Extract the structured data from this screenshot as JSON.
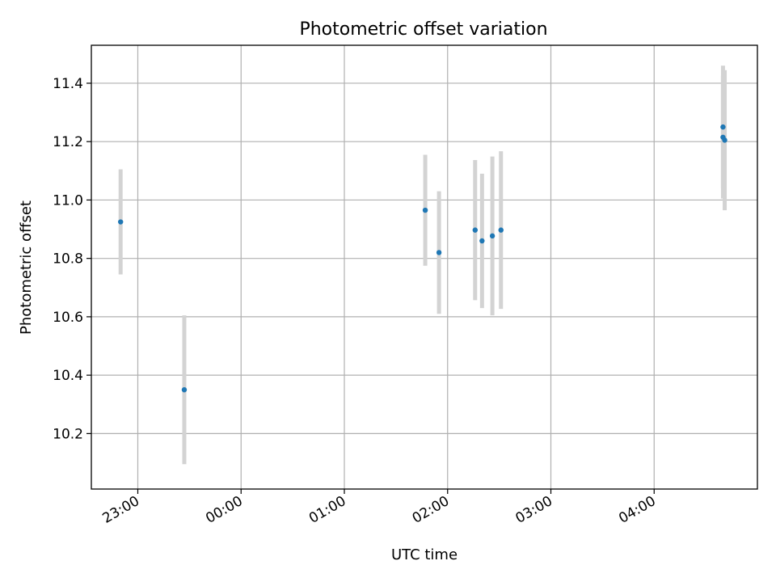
{
  "chart_data": {
    "type": "scatter",
    "title": "Photometric offset variation",
    "xlabel": "UTC time",
    "ylabel": "Photometric offset",
    "x_ticks": [
      "23:00",
      "00:00",
      "01:00",
      "02:00",
      "03:00",
      "04:00"
    ],
    "y_ticks": [
      "10.2",
      "10.4",
      "10.6",
      "10.8",
      "11.0",
      "11.2",
      "11.4"
    ],
    "xlim": [
      "22:33",
      "05:00"
    ],
    "ylim": [
      10.01,
      11.53
    ],
    "grid": true,
    "error_bar_color": "#d3d3d3",
    "point_color": "#1f77b4",
    "points": [
      {
        "x": "22:50",
        "y": 10.925,
        "yerr": 0.18
      },
      {
        "x": "23:27",
        "y": 10.35,
        "yerr": 0.255
      },
      {
        "x": "01:47",
        "y": 10.965,
        "yerr": 0.19
      },
      {
        "x": "01:55",
        "y": 10.82,
        "yerr": 0.21
      },
      {
        "x": "02:16",
        "y": 10.897,
        "yerr": 0.24
      },
      {
        "x": "02:20",
        "y": 10.86,
        "yerr": 0.23
      },
      {
        "x": "02:26",
        "y": 10.877,
        "yerr": 0.272
      },
      {
        "x": "02:31",
        "y": 10.897,
        "yerr": 0.27
      },
      {
        "x": "04:40",
        "y": 11.25,
        "yerr": 0.21
      },
      {
        "x": "04:40",
        "y": 11.215,
        "yerr": 0.21
      },
      {
        "x": "04:41",
        "y": 11.205,
        "yerr": 0.24
      }
    ]
  }
}
